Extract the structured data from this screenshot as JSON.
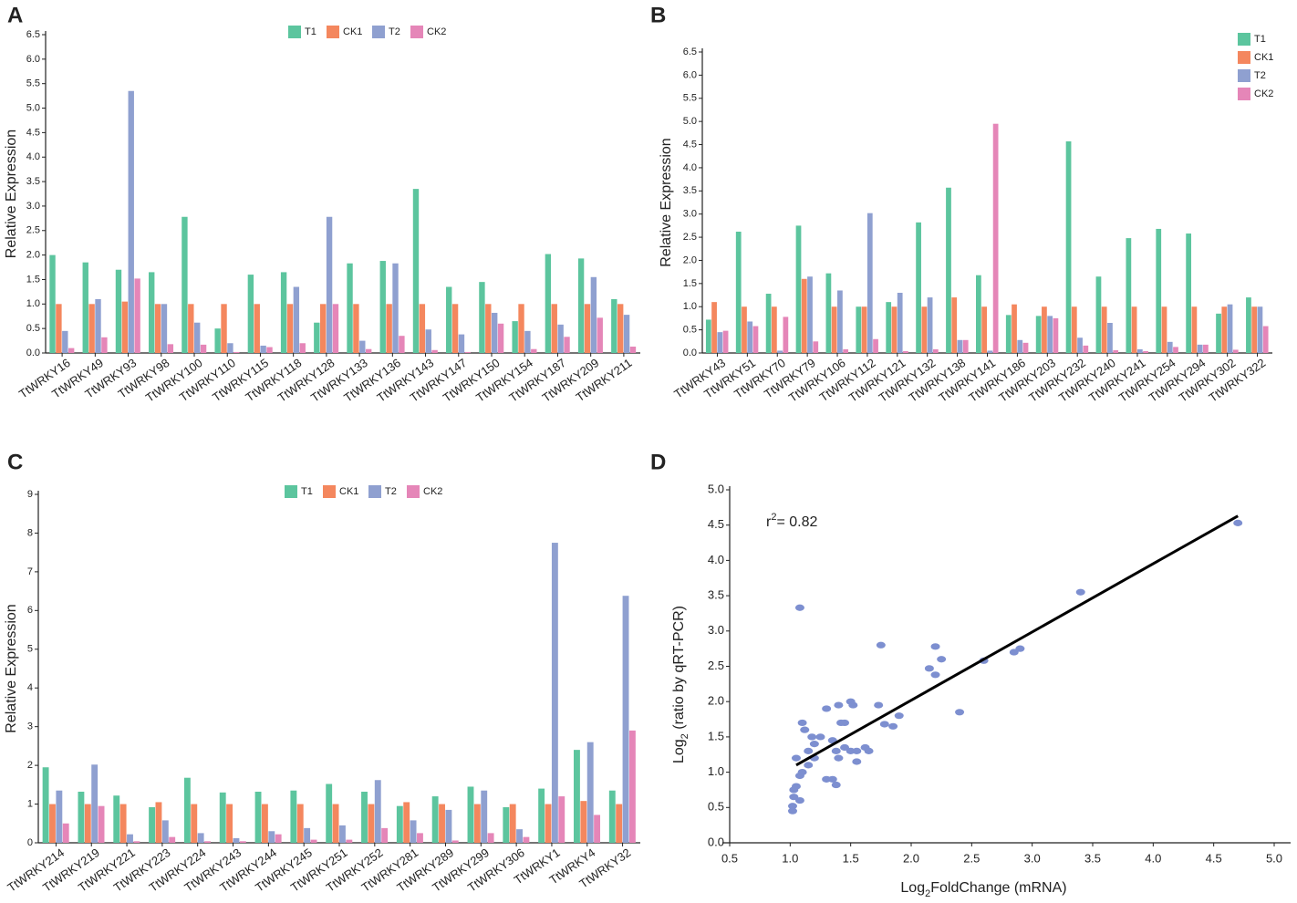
{
  "chart_data": [
    {
      "type": "bar",
      "panel": "A",
      "ylabel": "Relative Expression",
      "legend": "top",
      "categories": [
        "TtWRKY16",
        "TtWRKY49",
        "TtWRKY93",
        "TtWRKY98",
        "TtWRKY100",
        "TtWRKY110",
        "TtWRKY115",
        "TtWRKY118",
        "TtWRKY128",
        "TtWRKY133",
        "TtWRKY136",
        "TtWRKY143",
        "TtWRKY147",
        "TtWRKY150",
        "TtWRKY154",
        "TtWRKY187",
        "TtWRKY209",
        "TtWRKY211"
      ],
      "series": [
        {
          "name": "T1",
          "color": "#5cc59e",
          "values": [
            2.0,
            1.85,
            1.7,
            1.65,
            2.78,
            0.5,
            1.6,
            1.65,
            0.62,
            1.83,
            1.88,
            3.35,
            1.35,
            1.45,
            0.65,
            2.02,
            1.93,
            1.1
          ]
        },
        {
          "name": "CK1",
          "color": "#f4875e",
          "values": [
            1.0,
            1.0,
            1.05,
            1.0,
            1.0,
            1.0,
            1.0,
            1.0,
            1.0,
            1.0,
            1.0,
            1.0,
            1.0,
            1.0,
            1.0,
            1.0,
            1.0,
            1.0
          ]
        },
        {
          "name": "T2",
          "color": "#8fa0d0",
          "values": [
            0.45,
            1.1,
            5.35,
            1.0,
            0.62,
            0.2,
            0.15,
            1.35,
            2.78,
            0.25,
            1.83,
            0.48,
            0.38,
            0.82,
            0.45,
            0.58,
            1.55,
            0.78
          ]
        },
        {
          "name": "CK2",
          "color": "#e586b8",
          "values": [
            0.1,
            0.32,
            1.52,
            0.18,
            0.17,
            0.02,
            0.12,
            0.2,
            1.0,
            0.08,
            0.35,
            0.06,
            0.02,
            0.6,
            0.08,
            0.33,
            0.72,
            0.13
          ]
        }
      ],
      "ylim": [
        0,
        6.5
      ],
      "yticks": [
        {
          "value": 0,
          "label": "0.0"
        },
        0.5,
        {
          "value": 1,
          "label": "1.0"
        },
        1.5,
        {
          "value": 2,
          "label": "2.0"
        },
        2.5,
        {
          "value": 3,
          "label": "3.0"
        },
        3.5,
        {
          "value": 4,
          "label": "4.0"
        },
        4.5,
        {
          "value": 5,
          "label": "5.0"
        },
        5.5,
        {
          "value": 6,
          "label": "6.0"
        },
        6.5
      ]
    },
    {
      "type": "bar",
      "panel": "B",
      "ylabel": "Relative Expression",
      "legend": "right",
      "categories": [
        "TtWRKY43",
        "TtWRKY51",
        "TtWRKY70",
        "TtWRKY79",
        "TtWRKY106",
        "TtWRKY112",
        "TtWRKY121",
        "TtWRKY132",
        "TtWRKY138",
        "TtWRKY141",
        "TtWRKY186",
        "TtWRKY203",
        "TtWRKY232",
        "TtWRKY240",
        "TtWRKY241",
        "TtWRKY254",
        "TtWRKY294",
        "TtWRKY302",
        "TtWRKY322"
      ],
      "series": [
        {
          "name": "T1",
          "color": "#5cc59e",
          "values": [
            0.72,
            2.62,
            1.28,
            2.75,
            1.72,
            1.0,
            1.1,
            2.82,
            3.57,
            1.68,
            0.82,
            0.8,
            4.57,
            1.65,
            2.48,
            2.68,
            2.58,
            0.85,
            1.2
          ]
        },
        {
          "name": "CK1",
          "color": "#f4875e",
          "values": [
            1.1,
            1.0,
            1.0,
            1.6,
            1.0,
            1.0,
            1.0,
            1.0,
            1.2,
            1.0,
            1.05,
            1.0,
            1.0,
            1.0,
            1.0,
            1.0,
            1.0,
            1.0,
            1.0
          ]
        },
        {
          "name": "T2",
          "color": "#8fa0d0",
          "values": [
            0.45,
            0.68,
            0.05,
            1.65,
            1.35,
            3.02,
            1.3,
            1.2,
            0.28,
            0.05,
            0.28,
            0.8,
            0.33,
            0.65,
            0.08,
            0.24,
            0.18,
            1.05,
            1.0
          ]
        },
        {
          "name": "CK2",
          "color": "#e586b8",
          "values": [
            0.48,
            0.58,
            0.78,
            0.25,
            0.08,
            0.3,
            0.04,
            0.08,
            0.28,
            4.95,
            0.22,
            0.75,
            0.16,
            0.06,
            0.04,
            0.13,
            0.18,
            0.07,
            0.58
          ]
        }
      ],
      "ylim": [
        0,
        6.5
      ],
      "yticks": [
        {
          "value": 0,
          "label": "0.0"
        },
        0.5,
        {
          "value": 1,
          "label": "1.0"
        },
        1.5,
        {
          "value": 2,
          "label": "2.0"
        },
        2.5,
        {
          "value": 3,
          "label": "3.0"
        },
        3.5,
        {
          "value": 4,
          "label": "4.0"
        },
        4.5,
        {
          "value": 5,
          "label": "5.0"
        },
        5.5,
        {
          "value": 6,
          "label": "6.0"
        },
        6.5
      ]
    },
    {
      "type": "bar",
      "panel": "C",
      "ylabel": "Relative Expression",
      "legend": "top",
      "categories": [
        "TtWRKY214",
        "TtWRKY219",
        "TtWRKY221",
        "TtWRKY223",
        "TtWRKY224",
        "TtWRKY243",
        "TtWRKY244",
        "TtWRKY245",
        "TtWRKY251",
        "TtWRKY252",
        "TtWRKY281",
        "TtWRKY289",
        "TtWRKY299",
        "TtWRKY306",
        "TtWRKY1",
        "TtWRKY4",
        "TtWRKY32"
      ],
      "series": [
        {
          "name": "T1",
          "color": "#5cc59e",
          "values": [
            1.95,
            1.32,
            1.22,
            0.92,
            1.68,
            1.3,
            1.32,
            1.35,
            1.52,
            1.32,
            0.95,
            1.2,
            1.45,
            0.92,
            1.4,
            2.4,
            1.35
          ]
        },
        {
          "name": "CK1",
          "color": "#f4875e",
          "values": [
            1.0,
            1.0,
            1.0,
            1.05,
            1.0,
            1.0,
            1.0,
            1.0,
            1.0,
            1.0,
            1.05,
            1.0,
            1.0,
            1.0,
            1.0,
            1.08,
            1.0
          ]
        },
        {
          "name": "T2",
          "color": "#8fa0d0",
          "values": [
            1.35,
            2.02,
            0.22,
            0.58,
            0.25,
            0.12,
            0.3,
            0.38,
            0.45,
            1.62,
            0.58,
            0.85,
            1.35,
            0.35,
            7.75,
            2.6,
            6.38
          ]
        },
        {
          "name": "CK2",
          "color": "#e586b8",
          "values": [
            0.5,
            0.95,
            0.04,
            0.15,
            0.04,
            0.04,
            0.22,
            0.08,
            0.08,
            0.38,
            0.25,
            0.06,
            0.25,
            0.15,
            1.2,
            0.72,
            2.9
          ]
        }
      ],
      "ylim": [
        0,
        9
      ],
      "yticks": [
        0,
        1,
        2,
        3,
        4,
        5,
        6,
        7,
        8,
        9
      ]
    },
    {
      "type": "scatter",
      "panel": "D",
      "color": "#7d8fd0",
      "xlabel": [
        "Log",
        "2",
        "FoldChange (mRNA)"
      ],
      "ylabel": [
        "Log",
        "2",
        " (ratio by qRT-PCR)"
      ],
      "annotation": [
        "r",
        "2",
        "= 0.82"
      ],
      "x": [
        1.02,
        1.02,
        1.03,
        1.03,
        1.05,
        1.08,
        1.1,
        1.08,
        1.05,
        1.1,
        1.12,
        1.15,
        1.15,
        1.18,
        1.2,
        1.25,
        1.08,
        1.3,
        1.3,
        1.35,
        1.38,
        1.38,
        1.4,
        1.42,
        1.45,
        1.45,
        1.5,
        1.5,
        1.52,
        1.55,
        1.55,
        1.62,
        1.65,
        1.73,
        1.75,
        1.78,
        1.85,
        1.9,
        2.15,
        2.2,
        2.2,
        2.25,
        2.4,
        2.6,
        2.85,
        2.9,
        3.4,
        4.7,
        1.2,
        1.35,
        1.4
      ],
      "values": [
        0.45,
        0.52,
        0.65,
        0.75,
        0.8,
        0.95,
        1.0,
        0.6,
        1.2,
        1.7,
        1.6,
        1.3,
        1.1,
        1.5,
        1.4,
        1.5,
        3.33,
        1.9,
        0.9,
        0.9,
        1.3,
        0.82,
        1.2,
        1.7,
        1.7,
        1.35,
        2.0,
        1.3,
        1.95,
        1.3,
        1.15,
        1.35,
        1.3,
        1.95,
        2.8,
        1.68,
        1.65,
        1.8,
        2.47,
        2.38,
        2.78,
        2.6,
        1.85,
        2.58,
        2.7,
        2.75,
        3.55,
        4.53,
        1.2,
        1.45,
        1.95
      ],
      "fit": {
        "x": [
          1.05,
          4.7
        ],
        "y": [
          1.1,
          4.63
        ],
        "color": "#000000"
      },
      "xlim": [
        0.5,
        5.0
      ],
      "xticks": [
        0.5,
        {
          "value": 1,
          "label": "1.0"
        },
        1.5,
        {
          "value": 2,
          "label": "2.0"
        },
        2.5,
        {
          "value": 3,
          "label": "3.0"
        },
        3.5,
        {
          "value": 4,
          "label": "4.0"
        },
        4.5,
        {
          "value": 5,
          "label": "5.0"
        }
      ],
      "ylim": [
        0,
        5.0
      ],
      "yticks": [
        {
          "value": 0,
          "label": "0.0"
        },
        0.5,
        {
          "value": 1,
          "label": "1.0"
        },
        1.5,
        {
          "value": 2,
          "label": "2.0"
        },
        2.5,
        {
          "value": 3,
          "label": "3.0"
        },
        3.5,
        {
          "value": 4,
          "label": "4.0"
        },
        4.5,
        {
          "value": 5,
          "label": "5.0"
        }
      ]
    }
  ]
}
